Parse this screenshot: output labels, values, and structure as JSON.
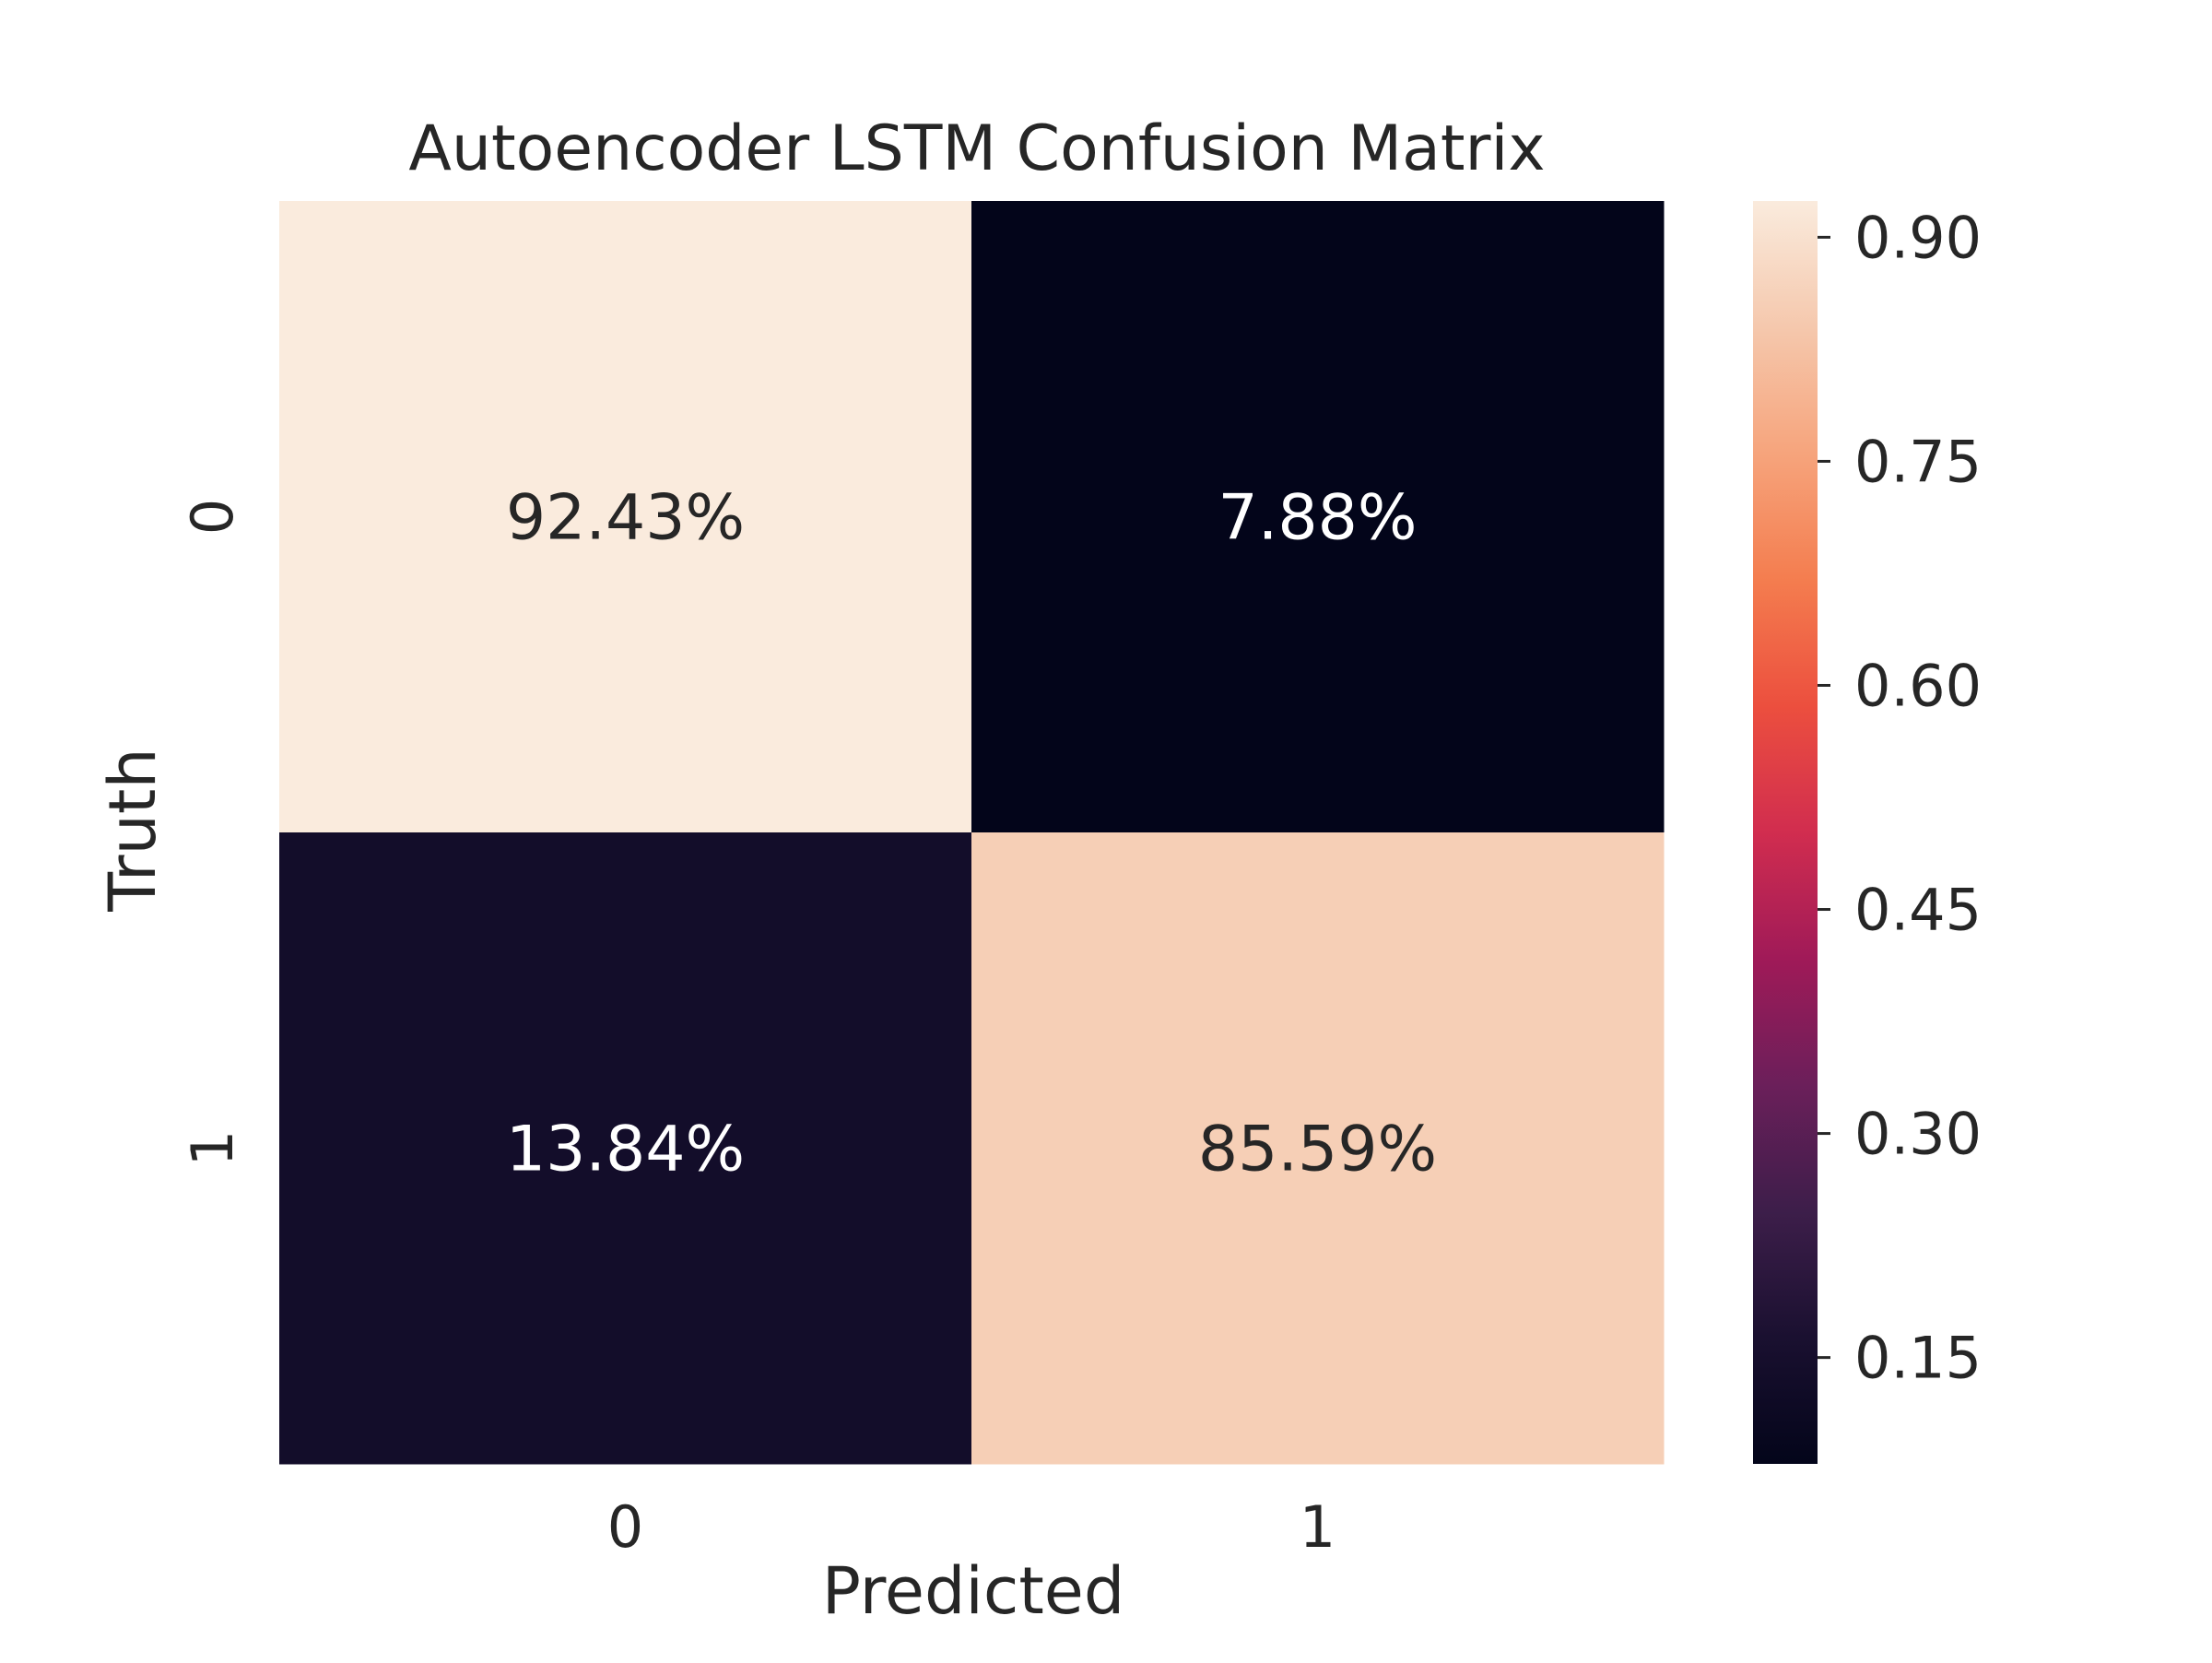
{
  "chart_data": {
    "type": "heatmap",
    "title": "Autoencoder LSTM Confusion Matrix",
    "xlabel": "Predicted",
    "ylabel": "Truth",
    "x_categories": [
      "0",
      "1"
    ],
    "y_categories": [
      "0",
      "1"
    ],
    "values": [
      [
        0.9243,
        0.0788
      ],
      [
        0.1384,
        0.8559
      ]
    ],
    "labels": [
      [
        "92.43%",
        "7.88%"
      ],
      [
        "13.84%",
        "85.59%"
      ]
    ],
    "colorbar": {
      "min": 0.0788,
      "max": 0.9243,
      "ticks": [
        0.15,
        0.3,
        0.45,
        0.6,
        0.75,
        0.9
      ],
      "tick_labels": [
        "0.15",
        "0.30",
        "0.45",
        "0.60",
        "0.75",
        "0.90"
      ],
      "colormap": "rocket",
      "stops": [
        "#03051a",
        "#1a1030",
        "#3d1e4a",
        "#6b1f5a",
        "#a01a58",
        "#d12d4f",
        "#ec4f3e",
        "#f47d4f",
        "#f6a47c",
        "#f5c8ad",
        "#faebdd"
      ]
    },
    "text_colors": {
      "light": "#ffffff",
      "dark": "#262626"
    },
    "grid": false
  }
}
